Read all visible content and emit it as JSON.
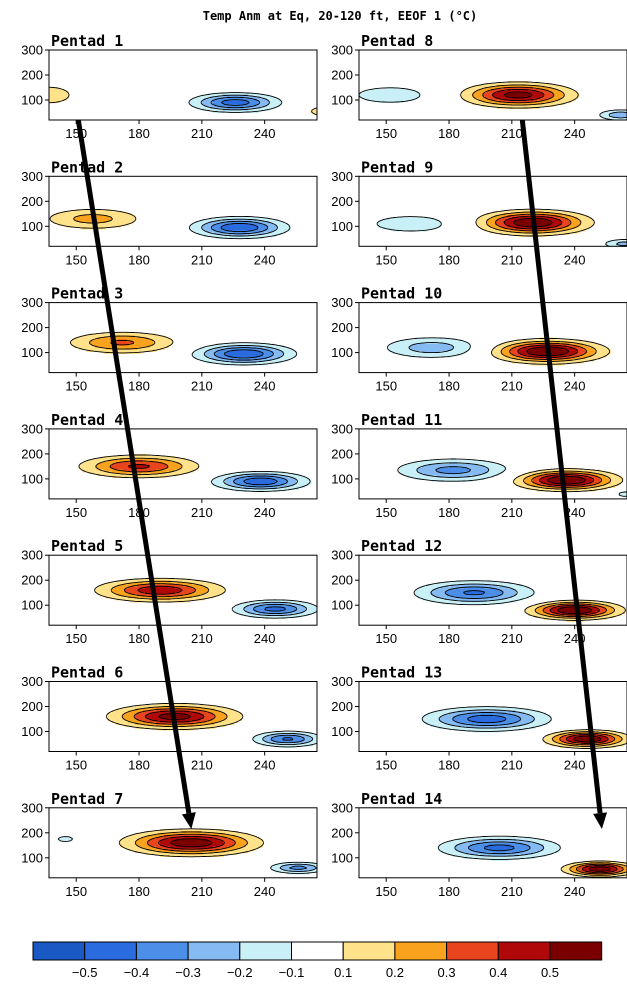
{
  "chart_data": {
    "type": "contour",
    "title": "Temp Anm at Eq, 20-120 ft, EEOF 1  (°C)",
    "xticks": [
      150,
      180,
      210,
      240
    ],
    "yticks": [
      100,
      200,
      300
    ],
    "xlim": [
      137,
      265
    ],
    "ylim": [
      300,
      20
    ],
    "contour_levels": [
      -0.5,
      -0.4,
      -0.3,
      -0.2,
      -0.1,
      0.1,
      0.2,
      0.3,
      0.4,
      0.5
    ],
    "colorbar_labels": [
      "-0.5",
      "-0.4",
      "-0.3",
      "-0.2",
      "-0.1",
      "0.1",
      "0.2",
      "0.3",
      "0.4",
      "0.5"
    ],
    "colorbar_colors": [
      "#1a58c4",
      "#2a6ce0",
      "#4b8fe8",
      "#86baf2",
      "#c8f0f6",
      "#ffffff",
      "#ffe28a",
      "#f8a21e",
      "#e8441e",
      "#b00808",
      "#7a0000"
    ],
    "legend": "bottom",
    "panels": [
      {
        "label": "Pentad 1",
        "features": [
          {
            "sign": 1,
            "x": 137,
            "y": 120,
            "sx": 14,
            "sy": 45,
            "amp": 0.16
          },
          {
            "sign": -1,
            "x": 226,
            "y": 90,
            "sx": 18,
            "sy": 32,
            "amp": 0.46
          },
          {
            "sign": 1,
            "x": 268,
            "y": 55,
            "sx": 8,
            "sy": 22,
            "amp": 0.17
          }
        ]
      },
      {
        "label": "Pentad 2",
        "features": [
          {
            "sign": 1,
            "x": 158,
            "y": 130,
            "sx": 22,
            "sy": 40,
            "amp": 0.24
          },
          {
            "sign": -1,
            "x": 228,
            "y": 95,
            "sx": 19,
            "sy": 35,
            "amp": 0.5
          }
        ]
      },
      {
        "label": "Pentad 3",
        "features": [
          {
            "sign": 1,
            "x": 172,
            "y": 140,
            "sx": 23,
            "sy": 38,
            "amp": 0.32
          },
          {
            "sign": -1,
            "x": 230,
            "y": 95,
            "sx": 20,
            "sy": 35,
            "amp": 0.5
          }
        ]
      },
      {
        "label": "Pentad 4",
        "features": [
          {
            "sign": 1,
            "x": 180,
            "y": 150,
            "sx": 24,
            "sy": 38,
            "amp": 0.42
          },
          {
            "sign": -1,
            "x": 238,
            "y": 90,
            "sx": 19,
            "sy": 32,
            "amp": 0.48
          }
        ]
      },
      {
        "label": "Pentad 5",
        "features": [
          {
            "sign": 1,
            "x": 190,
            "y": 160,
            "sx": 25,
            "sy": 38,
            "amp": 0.48
          },
          {
            "sign": -1,
            "x": 245,
            "y": 85,
            "sx": 17,
            "sy": 30,
            "amp": 0.44
          }
        ]
      },
      {
        "label": "Pentad 6",
        "features": [
          {
            "sign": 1,
            "x": 197,
            "y": 160,
            "sx": 25,
            "sy": 40,
            "amp": 0.55
          },
          {
            "sign": -1,
            "x": 251,
            "y": 70,
            "sx": 14,
            "sy": 26,
            "amp": 0.42
          }
        ]
      },
      {
        "label": "Pentad 7",
        "features": [
          {
            "sign": 1,
            "x": 205,
            "y": 160,
            "sx": 26,
            "sy": 42,
            "amp": 0.58
          },
          {
            "sign": -1,
            "x": 256,
            "y": 60,
            "sx": 12,
            "sy": 20,
            "amp": 0.34
          },
          {
            "sign": -1,
            "x": 145,
            "y": 175,
            "sx": 9,
            "sy": 25,
            "amp": 0.12
          }
        ]
      },
      {
        "label": "Pentad 8",
        "features": [
          {
            "sign": -1,
            "x": 152,
            "y": 120,
            "sx": 22,
            "sy": 42,
            "amp": 0.16
          },
          {
            "sign": 1,
            "x": 213,
            "y": 120,
            "sx": 22,
            "sy": 40,
            "amp": 0.55
          },
          {
            "sign": -1,
            "x": 262,
            "y": 40,
            "sx": 10,
            "sy": 20,
            "amp": 0.28
          }
        ]
      },
      {
        "label": "Pentad 9",
        "features": [
          {
            "sign": -1,
            "x": 162,
            "y": 110,
            "sx": 24,
            "sy": 42,
            "amp": 0.16
          },
          {
            "sign": 1,
            "x": 220,
            "y": 115,
            "sx": 22,
            "sy": 40,
            "amp": 0.6
          },
          {
            "sign": -1,
            "x": 264,
            "y": 30,
            "sx": 10,
            "sy": 18,
            "amp": 0.24
          }
        ]
      },
      {
        "label": "Pentad 10",
        "features": [
          {
            "sign": -1,
            "x": 172,
            "y": 120,
            "sx": 22,
            "sy": 40,
            "amp": 0.26
          },
          {
            "sign": 1,
            "x": 227,
            "y": 105,
            "sx": 22,
            "sy": 38,
            "amp": 0.62
          }
        ]
      },
      {
        "label": "Pentad 11",
        "features": [
          {
            "sign": -1,
            "x": 182,
            "y": 135,
            "sx": 24,
            "sy": 40,
            "amp": 0.34
          },
          {
            "sign": 1,
            "x": 236,
            "y": 95,
            "sx": 20,
            "sy": 34,
            "amp": 0.62
          },
          {
            "sign": -1,
            "x": 264,
            "y": 40,
            "sx": 6,
            "sy": 18,
            "amp": 0.14
          }
        ]
      },
      {
        "label": "Pentad 12",
        "features": [
          {
            "sign": -1,
            "x": 192,
            "y": 150,
            "sx": 24,
            "sy": 40,
            "amp": 0.42
          },
          {
            "sign": 1,
            "x": 240,
            "y": 80,
            "sx": 18,
            "sy": 30,
            "amp": 0.62
          }
        ]
      },
      {
        "label": "Pentad 13",
        "features": [
          {
            "sign": -1,
            "x": 198,
            "y": 150,
            "sx": 25,
            "sy": 40,
            "amp": 0.46
          },
          {
            "sign": 1,
            "x": 246,
            "y": 70,
            "sx": 16,
            "sy": 28,
            "amp": 0.6
          }
        ]
      },
      {
        "label": "Pentad 14",
        "features": [
          {
            "sign": -1,
            "x": 204,
            "y": 140,
            "sx": 24,
            "sy": 38,
            "amp": 0.44
          },
          {
            "sign": 1,
            "x": 252,
            "y": 55,
            "sx": 14,
            "sy": 24,
            "amp": 0.58
          }
        ]
      }
    ],
    "arrows": [
      {
        "from_panel": "Pentad 1",
        "from": [
          151,
          20
        ],
        "to_panel": "Pentad 7",
        "to": [
          205,
          215
        ]
      },
      {
        "from_panel": "Pentad 8",
        "from": [
          215,
          20
        ],
        "to_panel": "Pentad 14",
        "to": [
          253,
          215
        ]
      }
    ]
  }
}
